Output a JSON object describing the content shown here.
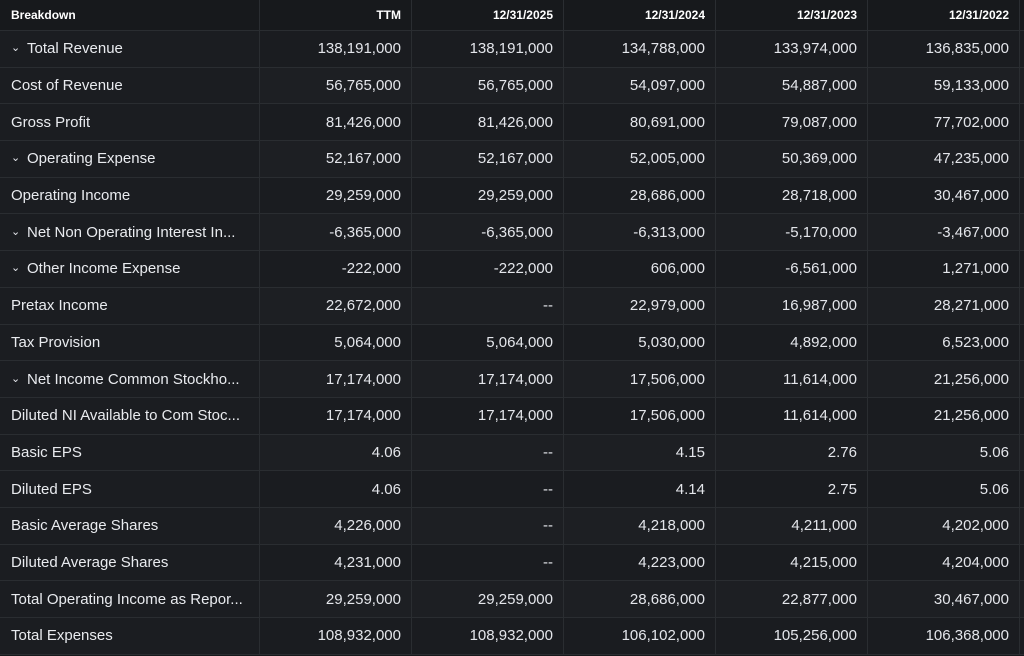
{
  "header": {
    "breakdown": "Breakdown",
    "columns": [
      "TTM",
      "12/31/2025",
      "12/31/2024",
      "12/31/2023",
      "12/31/2022"
    ]
  },
  "rows": [
    {
      "label": "Total Revenue",
      "expandable": true,
      "values": [
        "138,191,000",
        "138,191,000",
        "134,788,000",
        "133,974,000",
        "136,835,000"
      ]
    },
    {
      "label": "Cost of Revenue",
      "expandable": false,
      "values": [
        "56,765,000",
        "56,765,000",
        "54,097,000",
        "54,887,000",
        "59,133,000"
      ]
    },
    {
      "label": "Gross Profit",
      "expandable": false,
      "values": [
        "81,426,000",
        "81,426,000",
        "80,691,000",
        "79,087,000",
        "77,702,000"
      ]
    },
    {
      "label": "Operating Expense",
      "expandable": true,
      "values": [
        "52,167,000",
        "52,167,000",
        "52,005,000",
        "50,369,000",
        "47,235,000"
      ]
    },
    {
      "label": "Operating Income",
      "expandable": false,
      "values": [
        "29,259,000",
        "29,259,000",
        "28,686,000",
        "28,718,000",
        "30,467,000"
      ]
    },
    {
      "label": "Net Non Operating Interest In...",
      "expandable": true,
      "values": [
        "-6,365,000",
        "-6,365,000",
        "-6,313,000",
        "-5,170,000",
        "-3,467,000"
      ]
    },
    {
      "label": "Other Income Expense",
      "expandable": true,
      "values": [
        "-222,000",
        "-222,000",
        "606,000",
        "-6,561,000",
        "1,271,000"
      ]
    },
    {
      "label": "Pretax Income",
      "expandable": false,
      "values": [
        "22,672,000",
        "--",
        "22,979,000",
        "16,987,000",
        "28,271,000"
      ]
    },
    {
      "label": "Tax Provision",
      "expandable": false,
      "values": [
        "5,064,000",
        "5,064,000",
        "5,030,000",
        "4,892,000",
        "6,523,000"
      ]
    },
    {
      "label": "Net Income Common Stockho...",
      "expandable": true,
      "values": [
        "17,174,000",
        "17,174,000",
        "17,506,000",
        "11,614,000",
        "21,256,000"
      ]
    },
    {
      "label": "Diluted NI Available to Com Stoc...",
      "expandable": false,
      "values": [
        "17,174,000",
        "17,174,000",
        "17,506,000",
        "11,614,000",
        "21,256,000"
      ]
    },
    {
      "label": "Basic EPS",
      "expandable": false,
      "values": [
        "4.06",
        "--",
        "4.15",
        "2.76",
        "5.06"
      ]
    },
    {
      "label": "Diluted EPS",
      "expandable": false,
      "values": [
        "4.06",
        "--",
        "4.14",
        "2.75",
        "5.06"
      ]
    },
    {
      "label": "Basic Average Shares",
      "expandable": false,
      "values": [
        "4,226,000",
        "--",
        "4,218,000",
        "4,211,000",
        "4,202,000"
      ]
    },
    {
      "label": "Diluted Average Shares",
      "expandable": false,
      "values": [
        "4,231,000",
        "--",
        "4,223,000",
        "4,215,000",
        "4,204,000"
      ]
    },
    {
      "label": "Total Operating Income as Repor...",
      "expandable": false,
      "values": [
        "29,259,000",
        "29,259,000",
        "28,686,000",
        "22,877,000",
        "30,467,000"
      ]
    },
    {
      "label": "Total Expenses",
      "expandable": false,
      "values": [
        "108,932,000",
        "108,932,000",
        "106,102,000",
        "105,256,000",
        "106,368,000"
      ]
    }
  ],
  "icons": {
    "expand": "chevron-down-icon"
  },
  "colors": {
    "background": "#17191c",
    "text": "#e4e6eb",
    "divider": "#2a2d31"
  }
}
